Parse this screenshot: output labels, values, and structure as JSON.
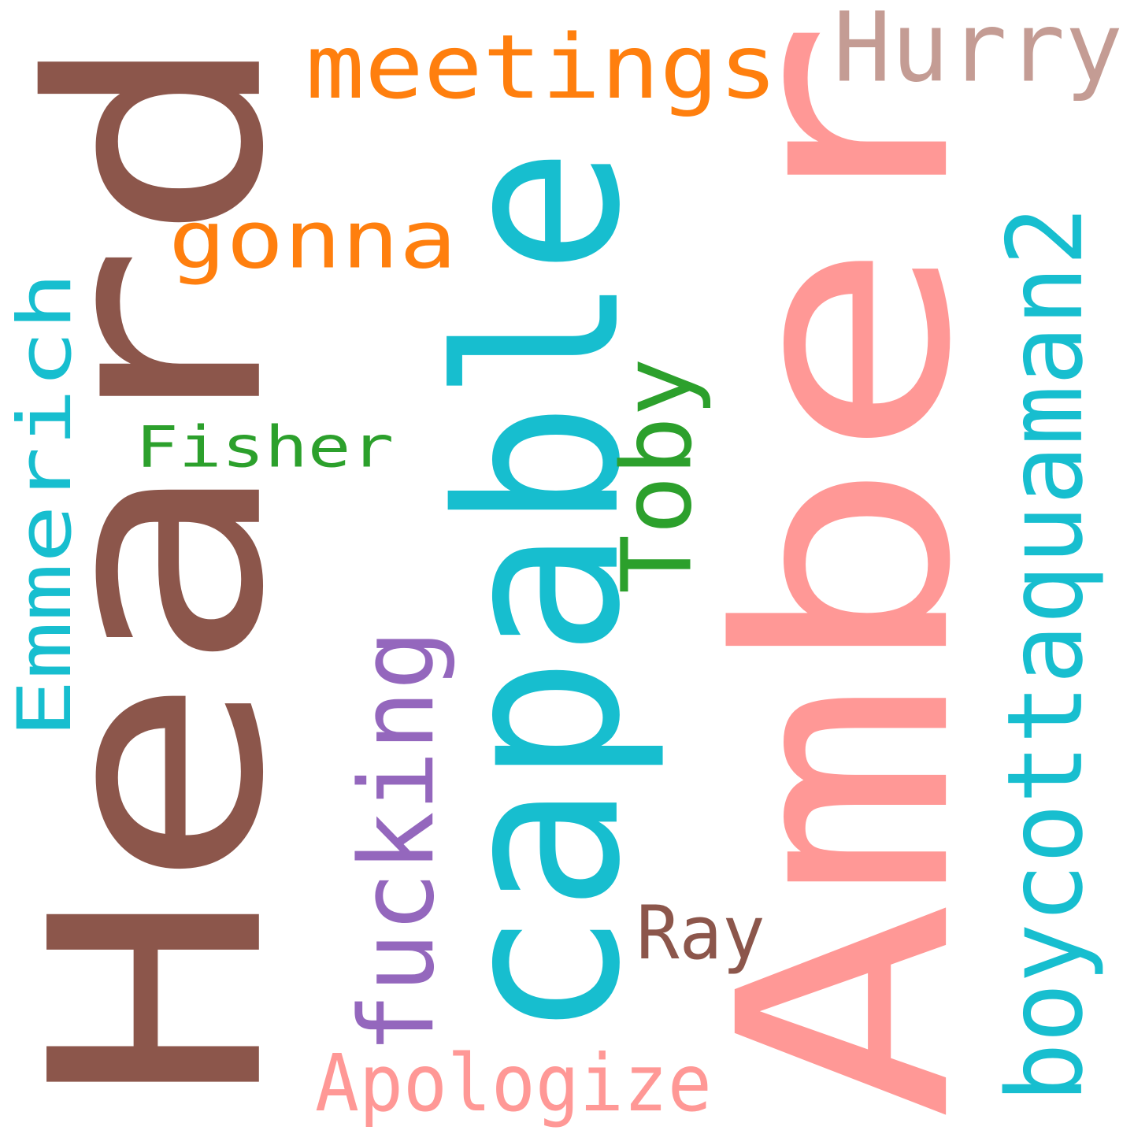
{
  "words": [
    {
      "key": "heard",
      "text": "Heard",
      "color": "#8c564b",
      "vertical": true
    },
    {
      "key": "amber",
      "text": "Amber",
      "color": "#ff9896",
      "vertical": true
    },
    {
      "key": "capable",
      "text": "capable",
      "color": "#17becf",
      "vertical": true
    },
    {
      "key": "boycottaquaman2",
      "text": "boycottaquaman2",
      "color": "#17becf",
      "vertical": true
    },
    {
      "key": "emmerich",
      "text": "Emmerich",
      "color": "#17becf",
      "vertical": true
    },
    {
      "key": "fucking",
      "text": "fucking",
      "color": "#9467bd",
      "vertical": true
    },
    {
      "key": "toby",
      "text": "Toby",
      "color": "#2ca02c",
      "vertical": true
    },
    {
      "key": "meetings",
      "text": "meetings",
      "color": "#ff7f0e",
      "vertical": false
    },
    {
      "key": "hurry",
      "text": "Hurry",
      "color": "#c49c94",
      "vertical": false
    },
    {
      "key": "gonna",
      "text": "gonna",
      "color": "#ff7f0e",
      "vertical": false
    },
    {
      "key": "fisher",
      "text": "Fisher",
      "color": "#2ca02c",
      "vertical": false
    },
    {
      "key": "ray",
      "text": "Ray",
      "color": "#8c564b",
      "vertical": false
    },
    {
      "key": "apologize",
      "text": "Apologize",
      "color": "#ff9896",
      "vertical": false
    }
  ]
}
